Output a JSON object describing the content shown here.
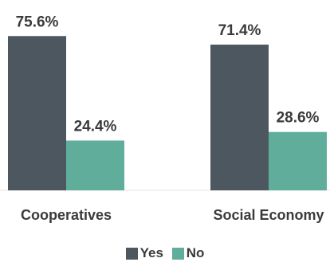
{
  "chart_data": {
    "type": "bar",
    "categories": [
      "Cooperatives",
      "Social Economy"
    ],
    "series": [
      {
        "name": "Yes",
        "values": [
          75.6,
          71.4
        ],
        "labels": [
          "75.6%",
          "71.4%"
        ],
        "color": "#4d5760"
      },
      {
        "name": "No",
        "values": [
          24.4,
          28.6
        ],
        "labels": [
          "24.4%",
          "28.6%"
        ],
        "color": "#60ad9c"
      }
    ],
    "ylim": [
      0,
      80
    ],
    "grid": false,
    "legend_position": "bottom"
  }
}
